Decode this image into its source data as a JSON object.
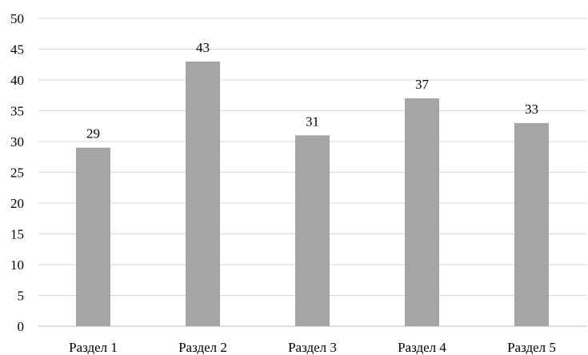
{
  "chart_data": {
    "type": "bar",
    "categories": [
      "Раздел 1",
      "Раздел 2",
      "Раздел 3",
      "Раздел 4",
      "Раздел 5"
    ],
    "values": [
      29,
      43,
      31,
      37,
      33
    ],
    "data_labels": [
      "29",
      "43",
      "31",
      "37",
      "33"
    ],
    "title": "",
    "xlabel": "",
    "ylabel": "",
    "ylim": [
      0,
      50
    ],
    "y_ticks": [
      "0",
      "5",
      "10",
      "15",
      "20",
      "25",
      "30",
      "35",
      "40",
      "45",
      "50"
    ],
    "grid": true,
    "legend": "none",
    "colors": {
      "bar": "#a5a5a5",
      "grid": "#d9d9d9",
      "axis": "#bfbfbf",
      "text": "#000000"
    }
  }
}
